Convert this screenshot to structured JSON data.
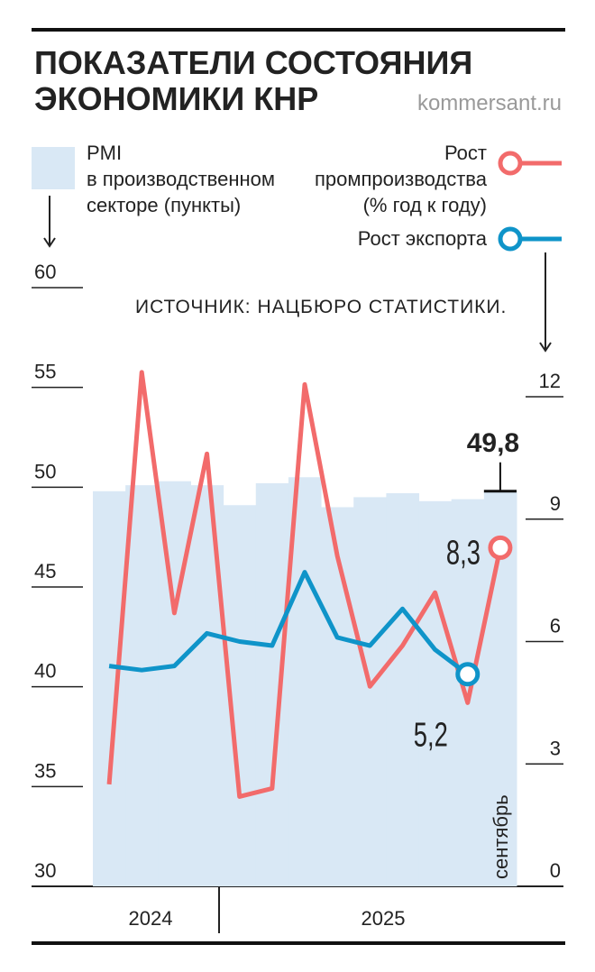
{
  "chart_data": {
    "type": "combo",
    "title": [
      "ПОКАЗАТЕЛИ СОСТОЯНИЯ",
      "ЭКОНОМИКИ КНР"
    ],
    "source_site": "kommersant.ru",
    "note": "ИСТОЧНИК: НАЦБЮРО СТАТИСТИКИ.",
    "categories": [
      null,
      null,
      null,
      null,
      null,
      null,
      null,
      null,
      null,
      null,
      null,
      null,
      "сентябрь"
    ],
    "years": [
      "2024",
      "2025"
    ],
    "series": [
      {
        "name": [
          "PMI",
          "в производственном",
          "секторе (пункты)"
        ],
        "type": "area",
        "color": "#d9e8f5",
        "axis": "y",
        "values": [
          49.8,
          50.1,
          50.3,
          50.1,
          49.1,
          50.2,
          50.5,
          49.0,
          49.5,
          49.7,
          49.3,
          49.4,
          49.8
        ],
        "value_labels": [
          null,
          null,
          null,
          null,
          null,
          null,
          null,
          null,
          null,
          null,
          null,
          null,
          "49,8"
        ]
      },
      {
        "name": [
          "Рост",
          "промпроизводства",
          "(% год к году)"
        ],
        "type": "line",
        "color": "#f26b6b",
        "axis": "y2",
        "values": [
          2.5,
          12.6,
          6.7,
          10.6,
          2.2,
          2.4,
          12.3,
          8.1,
          4.9,
          5.9,
          7.2,
          4.5,
          8.3
        ],
        "value_labels": [
          null,
          null,
          null,
          null,
          null,
          null,
          null,
          null,
          null,
          null,
          null,
          null,
          "8,3"
        ]
      },
      {
        "name": [
          "Рост экспорта"
        ],
        "type": "line",
        "color": "#0f94c9",
        "axis": "y2",
        "values": [
          5.4,
          5.3,
          5.4,
          6.2,
          6.0,
          5.9,
          7.7,
          6.1,
          5.9,
          6.8,
          5.8,
          5.2,
          null
        ],
        "value_labels": [
          null,
          null,
          null,
          null,
          null,
          null,
          null,
          null,
          null,
          null,
          null,
          "5,2",
          null
        ]
      }
    ],
    "ylim": [
      30,
      60
    ],
    "yticks": [
      30,
      35,
      40,
      45,
      50,
      55,
      60
    ],
    "y2lim": [
      0,
      12
    ],
    "y2ticks": [
      0,
      3,
      6,
      9,
      12
    ]
  }
}
